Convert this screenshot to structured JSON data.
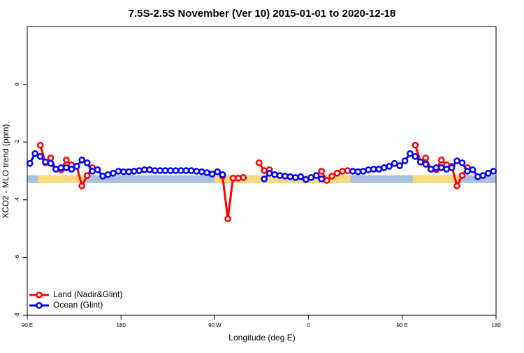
{
  "chart_data": {
    "type": "line",
    "title": "7.5S-2.5S November (Ver 10)   2015-01-01 to 2020-12-18",
    "x_label": "Longitude (deg E)",
    "y_label": "XCO2 - MLO trend (ppm)",
    "xlim": [
      90,
      540
    ],
    "ylim": [
      -8,
      2
    ],
    "xticks": [
      {
        "value": 90,
        "label": "90 E"
      },
      180,
      {
        "value": 270,
        "label": "90 W"
      },
      {
        "value": 360,
        "label": "0"
      },
      {
        "value": 450,
        "label": "90 E"
      },
      {
        "value": 540,
        "label": "180"
      }
    ],
    "yticks": [
      0,
      -2,
      -4,
      -6,
      -8
    ],
    "legend": "bottom-left",
    "mask": {
      "ylim": [
        -3.42,
        -3.15
      ],
      "ocean_color": "#a9c0e0",
      "land_color": "#fbd980",
      "land": [
        [
          100,
          145
        ],
        [
          270,
          400
        ],
        [
          460,
          505
        ]
      ]
    },
    "x": [
      92.5,
      97.5,
      102.5,
      107.5,
      112.5,
      117.5,
      122.5,
      127.5,
      132.5,
      137.5,
      142.5,
      147.5,
      152.5,
      157.5,
      162.5,
      167.5,
      172.5,
      177.5,
      182.5,
      187.5,
      192.5,
      197.5,
      202.5,
      207.5,
      212.5,
      217.5,
      222.5,
      227.5,
      232.5,
      237.5,
      242.5,
      247.5,
      252.5,
      257.5,
      262.5,
      267.5,
      272.5,
      277.5,
      282.5,
      287.5,
      292.5,
      297.5,
      302.5,
      307.5,
      312.5,
      317.5,
      322.5,
      327.5,
      332.5,
      337.5,
      342.5,
      347.5,
      352.5,
      357.5,
      362.5,
      367.5,
      372.5,
      377.5,
      382.5,
      387.5,
      392.5,
      397.5,
      402.5,
      407.5,
      412.5,
      417.5,
      422.5,
      427.5,
      432.5,
      437.5,
      442.5,
      447.5,
      452.5,
      457.5,
      462.5,
      467.5,
      472.5,
      477.5,
      482.5,
      487.5,
      492.5,
      497.5,
      502.5,
      507.5,
      512.5,
      517.5,
      522.5,
      527.5,
      532.5,
      537.5
    ],
    "series": [
      {
        "name": "Land (Nadir&Glint)",
        "color": "#ff0000",
        "values": [
          null,
          null,
          -2.11,
          -2.72,
          -2.55,
          -2.94,
          -2.96,
          -2.62,
          -2.79,
          -2.84,
          -3.52,
          -3.16,
          -2.89,
          null,
          null,
          null,
          null,
          null,
          null,
          null,
          null,
          null,
          null,
          null,
          null,
          null,
          null,
          null,
          null,
          null,
          null,
          null,
          null,
          null,
          null,
          null,
          null,
          -3.18,
          -4.66,
          -3.25,
          -3.25,
          -3.23,
          null,
          null,
          -2.72,
          -2.99,
          -2.96,
          null,
          null,
          null,
          null,
          null,
          null,
          null,
          null,
          null,
          -3.01,
          -3.33,
          -3.18,
          -3.08,
          -3.01,
          -2.99,
          null,
          null,
          null,
          null,
          null,
          null,
          null,
          null,
          null,
          null,
          null,
          null,
          -2.11,
          -2.69,
          -2.55,
          -2.94,
          -2.96,
          -2.62,
          -2.79,
          -2.84,
          -3.52,
          -3.16,
          -2.89,
          null,
          null,
          null,
          null,
          null
        ]
      },
      {
        "name": "Ocean (Glint)",
        "color": "#0000ff",
        "values": [
          -2.74,
          -2.4,
          -2.5,
          -2.69,
          -2.74,
          -2.94,
          -2.89,
          -2.89,
          -2.94,
          -2.84,
          -2.62,
          -2.72,
          -3.01,
          -2.96,
          -3.18,
          -3.13,
          -3.08,
          -3.01,
          -3.03,
          -3.03,
          -3.01,
          -2.99,
          -2.96,
          -2.96,
          -2.99,
          -2.99,
          -2.99,
          -2.99,
          -2.99,
          -2.99,
          -2.99,
          -2.99,
          -3.01,
          -3.03,
          -3.06,
          -3.11,
          -3.03,
          -3.13,
          null,
          null,
          null,
          null,
          null,
          null,
          null,
          -3.28,
          -3.08,
          -3.13,
          -3.16,
          -3.18,
          -3.2,
          -3.23,
          -3.2,
          -3.3,
          -3.23,
          -3.16,
          -3.28,
          null,
          null,
          null,
          null,
          null,
          -3.01,
          -3.03,
          -3.01,
          -2.96,
          -2.94,
          -2.94,
          -2.89,
          -2.84,
          -2.74,
          -2.82,
          -2.65,
          -2.4,
          -2.5,
          -2.69,
          -2.77,
          -2.94,
          -2.89,
          -2.89,
          -2.94,
          -2.89,
          -2.65,
          -2.72,
          -3.01,
          -2.96,
          -3.2,
          -3.16,
          -3.08,
          -3.01
        ]
      }
    ]
  }
}
